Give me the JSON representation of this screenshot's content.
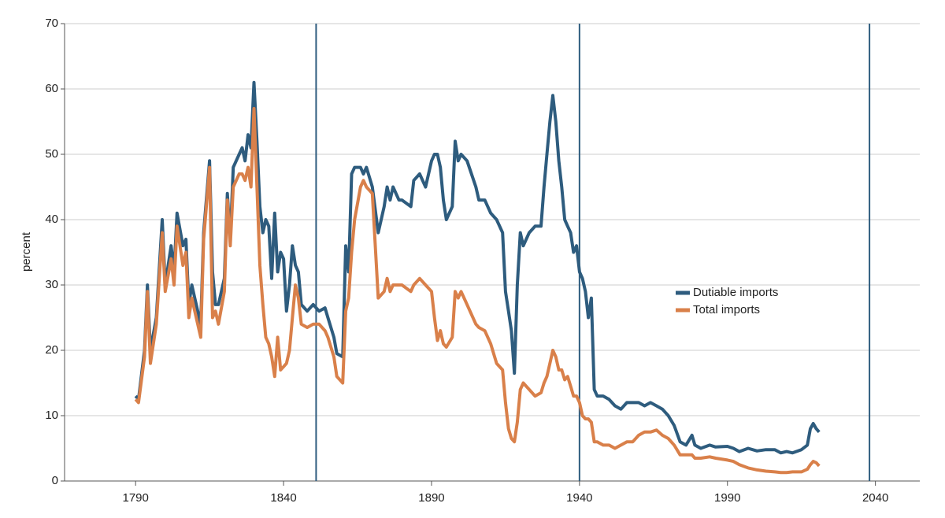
{
  "chart_data": {
    "type": "line",
    "y_label": "percent",
    "x": [
      1790,
      1791,
      1793,
      1794,
      1795,
      1797,
      1799,
      1800,
      1802,
      1803,
      1804,
      1806,
      1807,
      1808,
      1809,
      1810,
      1812,
      1813,
      1815,
      1816,
      1817,
      1818,
      1820,
      1821,
      1822,
      1823,
      1825,
      1826,
      1827,
      1828,
      1829,
      1830,
      1831,
      1832,
      1833,
      1834,
      1835,
      1836,
      1837,
      1838,
      1839,
      1840,
      1841,
      1842,
      1843,
      1844,
      1845,
      1846,
      1848,
      1850,
      1852,
      1854,
      1855,
      1857,
      1858,
      1860,
      1861,
      1862,
      1863,
      1864,
      1866,
      1867,
      1868,
      1870,
      1872,
      1874,
      1875,
      1876,
      1877,
      1879,
      1880,
      1883,
      1884,
      1886,
      1888,
      1890,
      1891,
      1892,
      1893,
      1894,
      1895,
      1897,
      1898,
      1899,
      1900,
      1902,
      1905,
      1906,
      1908,
      1910,
      1912,
      1914,
      1915,
      1916,
      1917,
      1918,
      1919,
      1920,
      1921,
      1923,
      1925,
      1927,
      1928,
      1929,
      1930,
      1931,
      1932,
      1933,
      1934,
      1935,
      1936,
      1937,
      1938,
      1939,
      1940,
      1941,
      1942,
      1943,
      1944,
      1945,
      1946,
      1948,
      1950,
      1952,
      1954,
      1956,
      1958,
      1960,
      1962,
      1964,
      1966,
      1968,
      1970,
      1972,
      1974,
      1976,
      1978,
      1979,
      1981,
      1984,
      1986,
      1990,
      1992,
      1994,
      1997,
      2000,
      2003,
      2006,
      2008,
      2010,
      2012,
      2015,
      2017,
      2018,
      2019,
      2020,
      2021
    ],
    "series": [
      {
        "name": "Dutiable imports",
        "color": "#2e5c7e",
        "values": [
          13,
          12.5,
          20,
          30,
          20,
          25,
          40,
          30,
          36,
          32,
          41,
          36,
          37,
          27,
          30,
          28,
          24,
          38,
          49,
          32,
          27,
          27,
          31,
          44,
          37,
          48,
          50,
          51,
          49,
          53,
          51,
          61,
          52,
          42,
          38,
          40,
          39,
          31,
          41,
          32,
          35,
          34,
          26,
          30,
          36,
          33,
          32,
          27,
          26,
          27,
          26,
          26.5,
          25,
          22,
          19.5,
          19,
          36,
          32,
          47,
          48,
          48,
          47,
          48,
          45,
          38,
          42,
          45,
          43,
          45,
          43,
          43,
          42,
          46,
          47,
          45,
          49,
          50,
          50,
          48,
          43,
          40,
          42,
          52,
          49,
          50,
          49,
          45,
          43,
          43,
          41,
          40,
          38,
          29,
          26,
          23,
          16.5,
          30,
          38,
          36,
          38,
          39,
          39,
          45,
          50,
          55,
          59,
          55,
          49,
          45,
          40,
          39,
          38,
          35,
          36,
          32,
          31,
          29,
          25,
          28,
          14,
          13,
          13,
          12.5,
          11.5,
          11,
          12,
          12,
          12,
          11.5,
          12,
          11.5,
          11,
          10,
          8.5,
          6,
          5.5,
          7,
          5.5,
          5,
          5.5,
          5.2,
          5.3,
          5,
          4.5,
          5,
          4.6,
          4.8,
          4.8,
          4.3,
          4.5,
          4.3,
          4.8,
          5.5,
          8,
          8.8,
          8,
          7.5
        ]
      },
      {
        "name": "Total imports",
        "color": "#d9804a",
        "values": [
          12.5,
          12,
          19,
          29,
          18,
          24,
          38,
          29,
          34,
          30,
          39,
          33,
          35,
          25,
          28,
          26,
          22,
          37,
          48,
          25,
          26,
          24,
          29,
          43,
          36,
          45,
          47,
          47,
          46,
          48,
          45,
          57,
          45,
          33,
          27,
          22,
          21,
          19,
          16,
          22,
          17,
          17.5,
          18,
          20,
          25,
          30,
          28,
          24,
          23.5,
          24,
          24,
          23,
          22,
          19,
          16,
          15,
          26,
          28,
          35,
          40,
          45,
          46,
          45,
          44,
          28,
          29,
          31,
          29,
          30,
          30,
          30,
          29,
          30,
          31,
          30,
          29,
          25,
          21.5,
          23,
          21,
          20.5,
          22,
          29,
          28,
          29,
          27,
          24,
          23.5,
          23,
          21,
          18,
          17,
          12,
          8,
          6.5,
          6,
          9,
          14,
          15,
          14,
          13,
          13.5,
          15,
          16,
          18,
          20,
          19,
          17,
          17,
          15.5,
          16,
          14.5,
          13,
          13,
          12,
          10,
          9.5,
          9.5,
          9,
          6,
          6,
          5.5,
          5.5,
          5,
          5.5,
          6,
          6,
          7,
          7.5,
          7.5,
          7.8,
          7,
          6.5,
          5.5,
          4,
          4,
          4,
          3.5,
          3.5,
          3.7,
          3.5,
          3.2,
          3,
          2.5,
          2,
          1.7,
          1.5,
          1.4,
          1.3,
          1.3,
          1.4,
          1.4,
          1.8,
          2.5,
          3,
          2.8,
          2.3
        ]
      }
    ],
    "xlim": [
      1766,
      2055
    ],
    "xticks": [
      1790,
      1840,
      1890,
      1940,
      1990,
      2040
    ],
    "ylim": [
      0,
      70
    ],
    "yticks": [
      0,
      10,
      20,
      30,
      40,
      50,
      60,
      70
    ],
    "grid": true,
    "vlines": [
      1851,
      1940,
      2038
    ],
    "vline_color": "#2e5c7e",
    "legend": "right"
  }
}
